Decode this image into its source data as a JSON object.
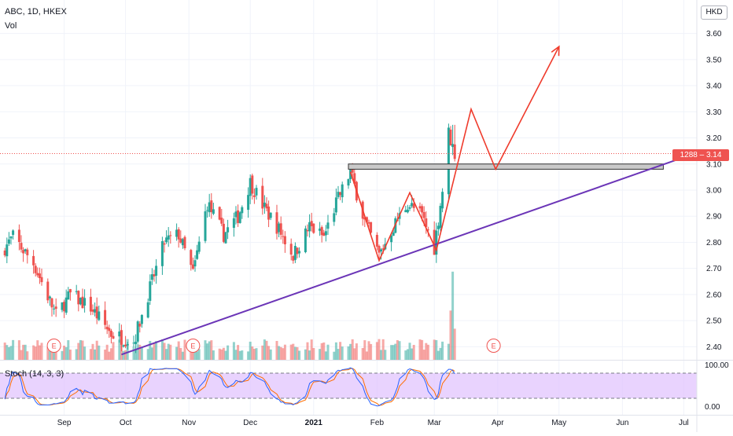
{
  "header": {
    "symbol": "ABC, 1D, HKEX",
    "volume_label": "Vol",
    "currency": "HKD"
  },
  "price_tag": {
    "label": "1288 – 3.14",
    "color": "#ef5350"
  },
  "indicator": {
    "label": "Stoch (14, 3, 3)",
    "top_level": "100.00",
    "bottom_level": "0.00"
  },
  "colors": {
    "up": "#26a69a",
    "down": "#ef5350",
    "trendline": "#6b35b7",
    "projection": "#ef3b2c",
    "stoch_k": "#2962ff",
    "stoch_d": "#ff6d00",
    "stoch_band": "#e1c4fd"
  },
  "chart_data": {
    "type": "candlestick",
    "y_ticks": [
      "3.60",
      "3.50",
      "3.40",
      "3.30",
      "3.20",
      "3.10",
      "3.00",
      "2.90",
      "2.80",
      "2.70",
      "2.60",
      "2.50",
      "2.40"
    ],
    "ylim": [
      2.35,
      3.68
    ],
    "x_ticks": [
      "Sep",
      "Oct",
      "Nov",
      "Dec",
      "2021",
      "Feb",
      "Mar",
      "Apr",
      "May",
      "Jun",
      "Jul"
    ],
    "last_price": 3.14,
    "resistance_zone": {
      "from_date": "2021-01-18",
      "to_date": "2021-06-21",
      "low": 3.08,
      "high": 3.1
    },
    "trendline": {
      "points": [
        [
          "2020-09-29",
          2.37
        ],
        [
          "2021-06-29",
          3.12
        ]
      ]
    },
    "projection_path": [
      [
        "2021-01-19",
        3.07
      ],
      [
        "2021-02-02",
        2.73
      ],
      [
        "2021-02-17",
        2.99
      ],
      [
        "2021-03-02",
        2.77
      ],
      [
        "2021-03-19",
        3.31
      ],
      [
        "2021-03-31",
        3.08
      ],
      [
        "2021-05-01",
        3.55
      ]
    ],
    "earnings_markers": [
      {
        "date": "2020-08-27",
        "label": "E"
      },
      {
        "date": "2020-11-03",
        "label": "E"
      },
      {
        "date": "2021-03-30",
        "label": "E"
      }
    ]
  }
}
